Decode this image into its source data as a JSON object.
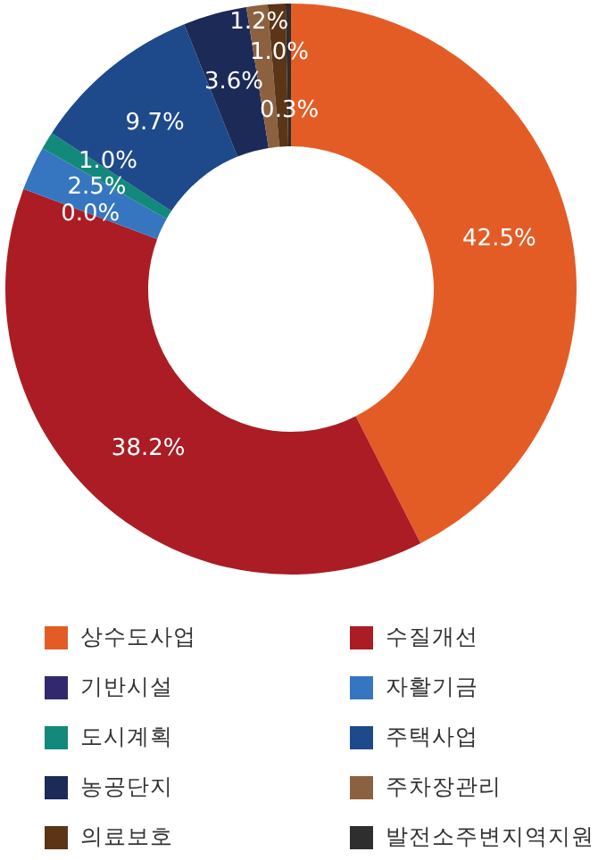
{
  "chart_data": {
    "type": "donut",
    "categories": [
      "상수도사업",
      "수질개선",
      "기반시설",
      "자활기금",
      "도시계획",
      "주택사업",
      "농공단지",
      "주차장관리",
      "의료보호",
      "발전소주변지역지원"
    ],
    "values": [
      42.5,
      38.2,
      0.0,
      2.5,
      1.0,
      9.7,
      3.6,
      1.2,
      1.0,
      0.3
    ],
    "value_labels": [
      "42.5%",
      "38.2%",
      "0.0%",
      "2.5%",
      "1.0%",
      "9.7%",
      "3.6%",
      "1.2%",
      "1.0%",
      "0.3%"
    ],
    "colors": [
      "#e35c26",
      "#ab1c24",
      "#32286e",
      "#3676c0",
      "#12897a",
      "#1e4a8c",
      "#1b2a57",
      "#8b6140",
      "#5c3516",
      "#2e2e2e"
    ],
    "legend": "bottom"
  }
}
